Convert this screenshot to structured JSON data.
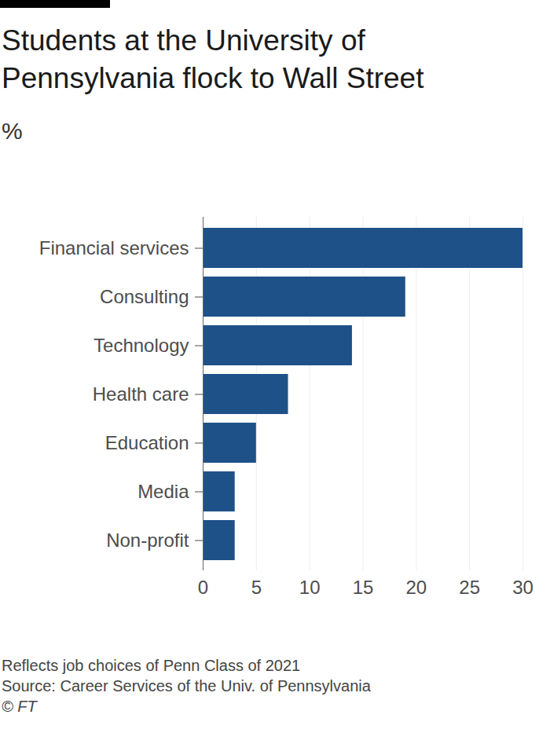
{
  "chart_data": {
    "type": "bar",
    "orientation": "horizontal",
    "title": "Students at the University of Pennsylvania flock to Wall Street",
    "subtitle": "%",
    "categories": [
      "Financial services",
      "Consulting",
      "Technology",
      "Health care",
      "Education",
      "Media",
      "Non-profit"
    ],
    "values": [
      30,
      19,
      14,
      8,
      5,
      3,
      3
    ],
    "color": "#1f5189",
    "xlim": [
      0,
      30
    ],
    "xticks": [
      0,
      5,
      10,
      15,
      20,
      25,
      30
    ],
    "grid": true,
    "notes": [
      "Reflects job choices of Penn Class of 2021",
      "Source: Career Services of the Univ. of Pennsylvania"
    ],
    "credit": "© FT"
  }
}
